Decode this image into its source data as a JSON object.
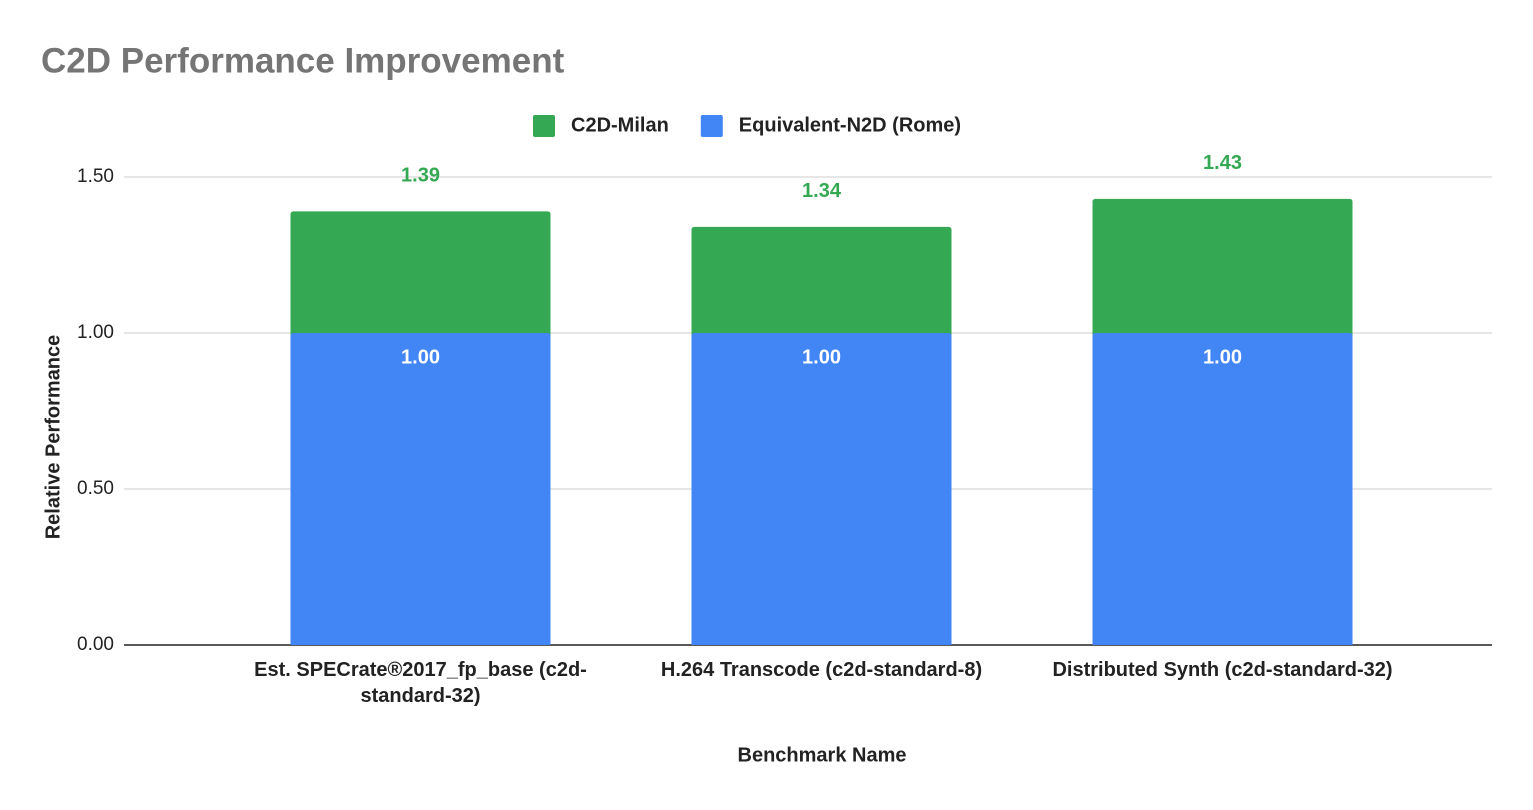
{
  "chart_data": {
    "type": "bar",
    "title": "C2D Performance Improvement",
    "x_label": "Benchmark Name",
    "y_label": "Relative Performance",
    "categories": [
      "Est. SPECrate®2017_fp_base (c2d-standard-32)",
      "H.264 Transcode (c2d-standard-8)",
      "Distributed Synth  (c2d-standard-32)"
    ],
    "series": [
      {
        "name": "C2D-Milan",
        "color": "#34a853",
        "values": [
          1.39,
          1.34,
          1.43
        ]
      },
      {
        "name": "Equivalent-N2D (Rome)",
        "color": "#4285f4",
        "values": [
          1,
          1,
          1
        ],
        "value_labels": [
          "1.00",
          "1.00",
          "1.00"
        ]
      }
    ],
    "ylim": [
      0,
      1.5
    ],
    "yticks": [
      {
        "value": 0,
        "label": "0.00"
      },
      {
        "value": 0.5,
        "label": "0.50"
      },
      {
        "value": 1,
        "label": "1.00"
      },
      {
        "value": 1.5,
        "label": "1.50"
      }
    ],
    "grid": true,
    "legend": "top"
  }
}
